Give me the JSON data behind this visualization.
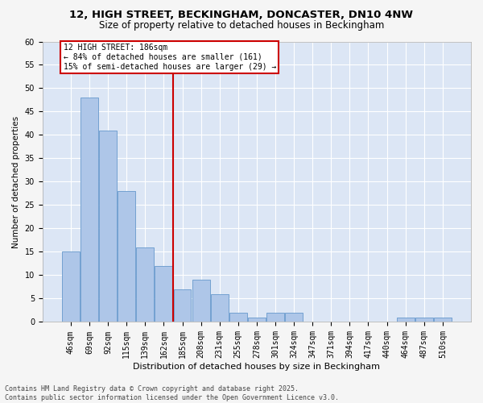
{
  "title1": "12, HIGH STREET, BECKINGHAM, DONCASTER, DN10 4NW",
  "title2": "Size of property relative to detached houses in Beckingham",
  "xlabel": "Distribution of detached houses by size in Beckingham",
  "ylabel": "Number of detached properties",
  "categories": [
    "46sqm",
    "69sqm",
    "92sqm",
    "115sqm",
    "139sqm",
    "162sqm",
    "185sqm",
    "208sqm",
    "231sqm",
    "255sqm",
    "278sqm",
    "301sqm",
    "324sqm",
    "347sqm",
    "371sqm",
    "394sqm",
    "417sqm",
    "440sqm",
    "464sqm",
    "487sqm",
    "510sqm"
  ],
  "values": [
    15,
    48,
    41,
    28,
    16,
    12,
    7,
    9,
    6,
    2,
    1,
    2,
    2,
    0,
    0,
    0,
    0,
    0,
    1,
    1,
    1
  ],
  "bar_color": "#aec6e8",
  "bar_edge_color": "#6699cc",
  "bg_color": "#dce6f5",
  "grid_color": "#ffffff",
  "fig_bg_color": "#f5f5f5",
  "vline_index": 6,
  "vline_color": "#cc0000",
  "annotation_text": "12 HIGH STREET: 186sqm\n← 84% of detached houses are smaller (161)\n15% of semi-detached houses are larger (29) →",
  "annotation_box_edge_color": "#cc0000",
  "annotation_bg_color": "#ffffff",
  "footer": "Contains HM Land Registry data © Crown copyright and database right 2025.\nContains public sector information licensed under the Open Government Licence v3.0.",
  "ylim": [
    0,
    60
  ],
  "yticks": [
    0,
    5,
    10,
    15,
    20,
    25,
    30,
    35,
    40,
    45,
    50,
    55,
    60
  ],
  "title1_fontsize": 9.5,
  "title2_fontsize": 8.5,
  "xlabel_fontsize": 8,
  "ylabel_fontsize": 7.5,
  "tick_fontsize": 7,
  "annotation_fontsize": 7,
  "footer_fontsize": 6
}
